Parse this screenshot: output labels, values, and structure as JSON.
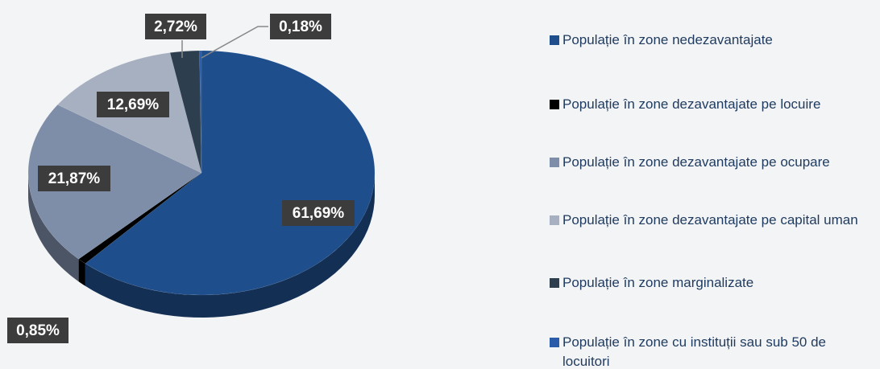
{
  "chart_data": {
    "type": "pie",
    "categories": [
      "Populație în zone nedezavantajate",
      "Populație în zone dezavantajate pe locuire",
      "Populație în zone dezavantajate pe ocupare",
      "Populație în zone dezavantajate pe capital uman",
      "Populație în zone marginalizate",
      "Populație în zone cu instituții sau sub 50 de locuitori"
    ],
    "values": [
      61.69,
      0.85,
      21.87,
      12.69,
      2.72,
      0.18
    ],
    "value_labels": [
      "61,69%",
      "0,85%",
      "21,87%",
      "12,69%",
      "2,72%",
      "0,18%"
    ],
    "colors": [
      "#1f4e8c",
      "#000000",
      "#7f8ea8",
      "#a7b0c0",
      "#2d3e4f",
      "#2a5caa"
    ]
  }
}
